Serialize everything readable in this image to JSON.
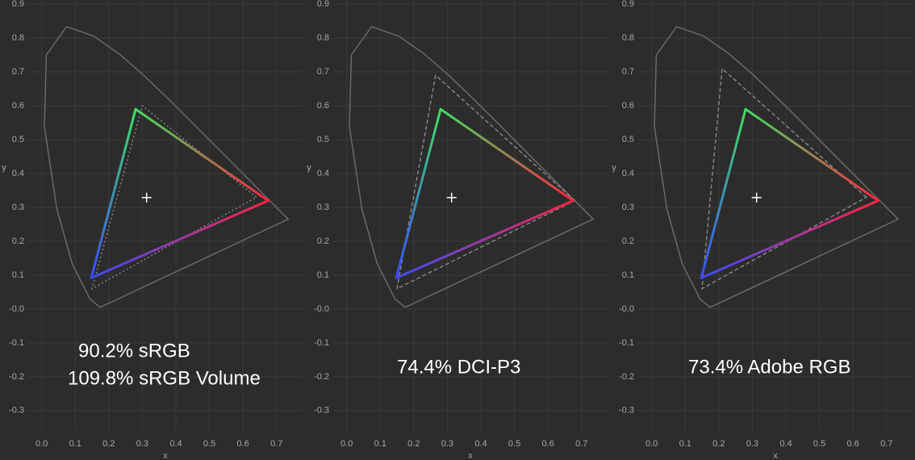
{
  "chart_data": [
    {
      "type": "line",
      "x_label": "x",
      "y_label": "y",
      "xlim": [
        -0.04,
        0.78
      ],
      "ylim": [
        -0.36,
        0.91
      ],
      "xticks": [
        {
          "value": 0,
          "label": "0.0"
        },
        0.1,
        0.2,
        0.3,
        0.4,
        0.5,
        0.6,
        0.7
      ],
      "yticks": [
        -0.3,
        -0.2,
        -0.1,
        {
          "value": 0,
          "label": "-0.0"
        },
        0.1,
        0.2,
        0.3,
        0.4,
        0.5,
        0.6,
        0.7,
        0.8,
        0.9
      ],
      "grid": true,
      "annotations": [
        "90.2% sRGB",
        "109.8% sRGB Volume"
      ],
      "series": [
        {
          "color": "#6a6a6a",
          "style": "solid",
          "closed": true,
          "x": [
            0.1741,
            0.144,
            0.0913,
            0.0454,
            0.0082,
            0.0139,
            0.0743,
            0.1547,
            0.2296,
            0.3016,
            0.3731,
            0.4441,
            0.5125,
            0.5752,
            0.627,
            0.6658,
            0.7347
          ],
          "values": [
            0.005,
            0.0297,
            0.1327,
            0.295,
            0.5384,
            0.7502,
            0.8338,
            0.8059,
            0.7543,
            0.6923,
            0.6245,
            0.5547,
            0.4866,
            0.4242,
            0.3725,
            0.334,
            0.2653
          ]
        },
        {
          "color": "#8a8a8a",
          "style": "dotted",
          "closed": true,
          "x": [
            0.64,
            0.3,
            0.15
          ],
          "values": [
            0.33,
            0.6,
            0.06
          ]
        },
        {
          "colors": [
            "#ff2440",
            "#3ee060",
            "#3a4cff"
          ],
          "style": "solid",
          "closed": true,
          "x": [
            0.675,
            0.28,
            0.148
          ],
          "values": [
            0.32,
            0.59,
            0.092
          ]
        },
        {
          "color": "#ffffff",
          "style": "cross",
          "x": [
            0.3127
          ],
          "values": [
            0.329
          ]
        }
      ]
    },
    {
      "type": "line",
      "x_label": "x",
      "y_label": "y",
      "xlim": [
        -0.04,
        0.78
      ],
      "ylim": [
        -0.36,
        0.91
      ],
      "xticks": [
        {
          "value": 0,
          "label": "0.0"
        },
        0.1,
        0.2,
        0.3,
        0.4,
        0.5,
        0.6,
        0.7
      ],
      "yticks": [
        -0.3,
        -0.2,
        -0.1,
        {
          "value": 0,
          "label": "-0.0"
        },
        0.1,
        0.2,
        0.3,
        0.4,
        0.5,
        0.6,
        0.7,
        0.8,
        0.9
      ],
      "grid": true,
      "annotations": [
        "74.4% DCI-P3"
      ],
      "series": [
        {
          "color": "#6a6a6a",
          "style": "solid",
          "closed": true,
          "x": [
            0.1741,
            0.144,
            0.0913,
            0.0454,
            0.0082,
            0.0139,
            0.0743,
            0.1547,
            0.2296,
            0.3016,
            0.3731,
            0.4441,
            0.5125,
            0.5752,
            0.627,
            0.6658,
            0.7347
          ],
          "values": [
            0.005,
            0.0297,
            0.1327,
            0.295,
            0.5384,
            0.7502,
            0.8338,
            0.8059,
            0.7543,
            0.6923,
            0.6245,
            0.5547,
            0.4866,
            0.4242,
            0.3725,
            0.334,
            0.2653
          ]
        },
        {
          "color": "#8a8a8a",
          "style": "dashed",
          "closed": true,
          "x": [
            0.68,
            0.265,
            0.15
          ],
          "values": [
            0.32,
            0.69,
            0.06
          ]
        },
        {
          "colors": [
            "#ff2440",
            "#3ee060",
            "#3a4cff"
          ],
          "style": "solid",
          "closed": true,
          "x": [
            0.675,
            0.28,
            0.148
          ],
          "values": [
            0.32,
            0.59,
            0.092
          ]
        },
        {
          "color": "#ffffff",
          "style": "cross",
          "x": [
            0.3127
          ],
          "values": [
            0.329
          ]
        }
      ]
    },
    {
      "type": "line",
      "x_label": "x",
      "y_label": "y",
      "xlim": [
        -0.04,
        0.78
      ],
      "ylim": [
        -0.36,
        0.91
      ],
      "xticks": [
        {
          "value": 0,
          "label": "0.0"
        },
        0.1,
        0.2,
        0.3,
        0.4,
        0.5,
        0.6,
        0.7
      ],
      "yticks": [
        -0.3,
        -0.2,
        -0.1,
        {
          "value": 0,
          "label": "-0.0"
        },
        0.1,
        0.2,
        0.3,
        0.4,
        0.5,
        0.6,
        0.7,
        0.8,
        0.9
      ],
      "grid": true,
      "annotations": [
        "73.4% Adobe RGB"
      ],
      "series": [
        {
          "color": "#6a6a6a",
          "style": "solid",
          "closed": true,
          "x": [
            0.1741,
            0.144,
            0.0913,
            0.0454,
            0.0082,
            0.0139,
            0.0743,
            0.1547,
            0.2296,
            0.3016,
            0.3731,
            0.4441,
            0.5125,
            0.5752,
            0.627,
            0.6658,
            0.7347
          ],
          "values": [
            0.005,
            0.0297,
            0.1327,
            0.295,
            0.5384,
            0.7502,
            0.8338,
            0.8059,
            0.7543,
            0.6923,
            0.6245,
            0.5547,
            0.4866,
            0.4242,
            0.3725,
            0.334,
            0.2653
          ]
        },
        {
          "color": "#8a8a8a",
          "style": "dashed",
          "closed": true,
          "x": [
            0.64,
            0.21,
            0.15
          ],
          "values": [
            0.33,
            0.71,
            0.06
          ]
        },
        {
          "colors": [
            "#ff2440",
            "#3ee060",
            "#3a4cff"
          ],
          "style": "solid",
          "closed": true,
          "x": [
            0.675,
            0.28,
            0.148
          ],
          "values": [
            0.32,
            0.59,
            0.092
          ]
        },
        {
          "color": "#ffffff",
          "style": "cross",
          "x": [
            0.3127
          ],
          "values": [
            0.329
          ]
        }
      ]
    }
  ]
}
